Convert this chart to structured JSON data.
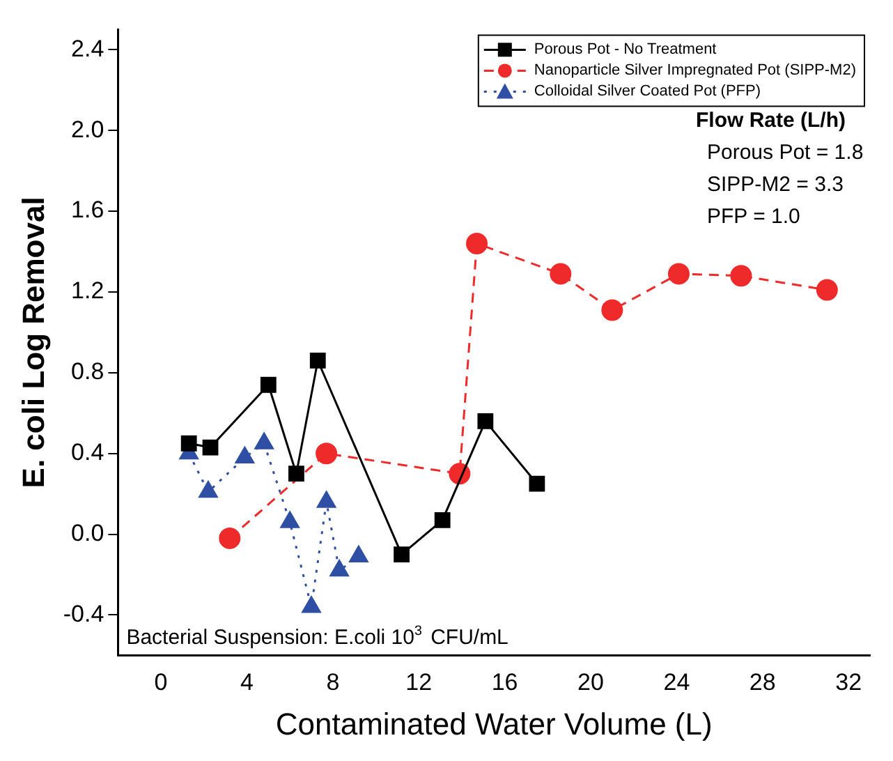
{
  "chart_data": {
    "type": "line",
    "xlabel": "Contaminated Water Volume (L)",
    "ylabel": "E. coli Log Removal",
    "xlim": [
      -2,
      33
    ],
    "xticks": [
      0,
      4,
      8,
      12,
      16,
      20,
      24,
      28,
      32
    ],
    "ylim": [
      -0.6,
      2.5
    ],
    "yticks": [
      -0.4,
      {
        "value": 0,
        "label": "0.0"
      },
      0.4,
      0.8,
      1.2,
      1.6,
      {
        "value": 2,
        "label": "2.0"
      },
      2.4
    ],
    "grid": false,
    "legend": "top right",
    "series": [
      {
        "name": "Porous Pot - No Treatment",
        "color": "#000000",
        "marker": "square",
        "line_style": "solid",
        "x": [
          1.3,
          2.3,
          5.0,
          6.3,
          7.3,
          11.2,
          13.1,
          15.1,
          17.5
        ],
        "values": [
          0.45,
          0.43,
          0.74,
          0.3,
          0.86,
          -0.1,
          0.07,
          0.56,
          0.25
        ]
      },
      {
        "name": "Nanoparticle Silver Impregnated Pot (SIPP-M2)",
        "color": "#ee2a2a",
        "marker": "circle",
        "line_style": "dashed",
        "x": [
          3.2,
          7.7,
          13.9,
          14.7,
          18.6,
          21.0,
          24.1,
          27.0,
          31.0
        ],
        "values": [
          -0.02,
          0.4,
          0.3,
          1.44,
          1.29,
          1.11,
          1.29,
          1.28,
          1.21
        ]
      },
      {
        "name": "Colloidal Silver Coated Pot (PFP)",
        "color": "#2e4fa3",
        "marker": "triangle",
        "line_style": "dotted",
        "x": [
          1.3,
          2.2,
          3.9,
          4.8,
          6.0,
          7.0,
          7.7,
          8.3,
          9.2
        ],
        "values": [
          0.4,
          0.21,
          0.38,
          0.45,
          0.06,
          -0.36,
          0.16,
          -0.18,
          -0.11
        ]
      }
    ],
    "annotations": [
      "Flow Rate (L/h)",
      "Porous Pot = 1.8",
      "SIPP-M2 = 3.3",
      "PFP = 1.0",
      "Bacterial Suspension: E.coli 10$^{3}$ CFU/mL"
    ]
  }
}
